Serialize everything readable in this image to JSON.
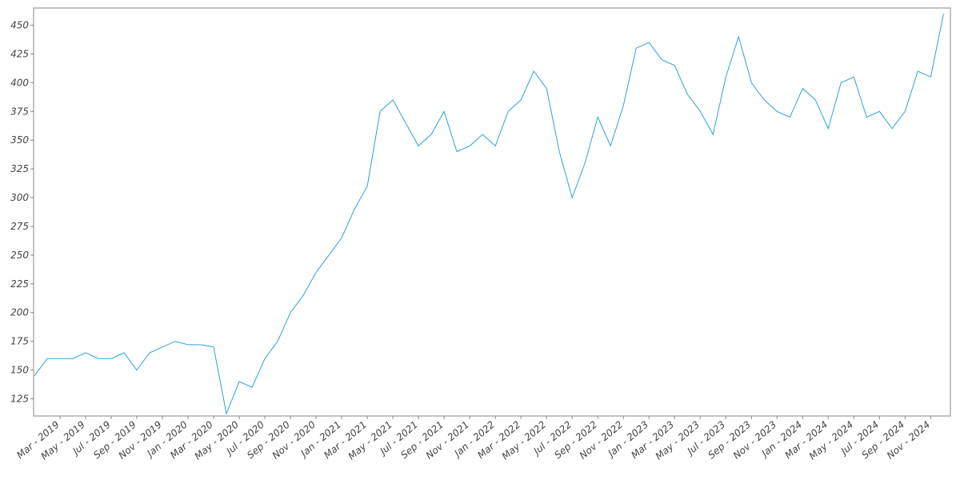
{
  "chart_data": {
    "type": "line",
    "categories": [
      null,
      null,
      "Mar - 2019",
      null,
      "May - 2019",
      null,
      "Jul - 2019",
      null,
      "Sep - 2019",
      null,
      "Nov - 2019",
      null,
      "Jan - 2020",
      null,
      "Mar - 2020",
      null,
      "May - 2020",
      null,
      "Jul - 2020",
      null,
      "Sep - 2020",
      null,
      "Nov - 2020",
      null,
      "Jan - 2021",
      null,
      "Mar - 2021",
      null,
      "May - 2021",
      null,
      "Jul - 2021",
      null,
      "Sep - 2021",
      null,
      "Nov - 2021",
      null,
      "Jan - 2022",
      null,
      "Mar - 2022",
      null,
      "May - 2022",
      null,
      "Jul - 2022",
      null,
      "Sep - 2022",
      null,
      "Nov - 2022",
      null,
      "Jan - 2023",
      null,
      "Mar - 2023",
      null,
      "May - 2023",
      null,
      "Jul - 2023",
      null,
      "Sep - 2023",
      null,
      "Nov - 2023",
      null,
      "Jan - 2024",
      null,
      "Mar - 2024",
      null,
      "May - 2024",
      null,
      "Jul - 2024",
      null,
      "Sep - 2024",
      null,
      "Nov - 2024",
      null
    ],
    "series": [
      {
        "color": "#2aa3d8",
        "values": [
          145,
          160,
          160,
          160,
          165,
          160,
          160,
          165,
          150,
          165,
          170,
          175,
          172,
          172,
          170,
          112,
          140,
          135,
          160,
          175,
          200,
          215,
          235,
          250,
          265,
          290,
          310,
          375,
          385,
          365,
          345,
          355,
          375,
          340,
          345,
          355,
          345,
          375,
          385,
          410,
          395,
          340,
          300,
          330,
          370,
          345,
          380,
          430,
          435,
          420,
          415,
          390,
          375,
          355,
          405,
          440,
          400,
          385,
          375,
          370,
          395,
          385,
          360,
          400,
          405,
          370,
          375,
          360,
          375,
          410,
          405,
          460
        ]
      }
    ],
    "ylim": [
      110,
      465
    ],
    "yticks": [
      125,
      150,
      175,
      200,
      225,
      250,
      275,
      300,
      325,
      350,
      375,
      400,
      425,
      450
    ]
  }
}
